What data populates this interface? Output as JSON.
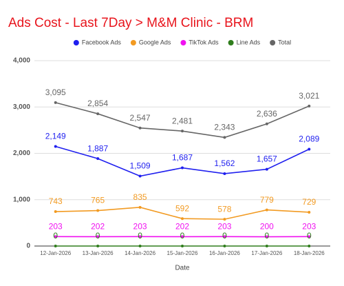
{
  "chart_data": {
    "type": "line",
    "title": "Ads Cost - Last 7Day > M&M Clinic - BRM",
    "x_label": "Date",
    "categories": [
      "12-Jan-2026",
      "13-Jan-2026",
      "14-Jan-2026",
      "15-Jan-2026",
      "16-Jan-2026",
      "17-Jan-2026",
      "18-Jan-2026"
    ],
    "series": [
      {
        "name": "Facebook Ads",
        "color": "#1f1fef",
        "values": [
          2149,
          1887,
          1509,
          1687,
          1562,
          1657,
          2089
        ],
        "value_labels": [
          "2,149",
          "1,887",
          "1,509",
          "1,687",
          "1,562",
          "1,657",
          "2,089"
        ]
      },
      {
        "name": "Google Ads",
        "color": "#f29a21",
        "values": [
          743,
          765,
          835,
          592,
          578,
          779,
          729
        ]
      },
      {
        "name": "TikTok Ads",
        "color": "#f010f0",
        "values": [
          203,
          202,
          203,
          202,
          203,
          200,
          203
        ]
      },
      {
        "name": "Line Ads",
        "color": "#2f7d1c",
        "values": [
          0,
          0,
          0,
          0,
          0,
          0,
          0
        ]
      },
      {
        "name": "Total",
        "color": "#666666",
        "values": [
          3095,
          2854,
          2547,
          2481,
          2343,
          2636,
          3021
        ],
        "value_labels": [
          "3,095",
          "2,854",
          "2,547",
          "2,481",
          "2,343",
          "2,636",
          "3,021"
        ]
      }
    ],
    "ylim": [
      0,
      4000
    ],
    "yticks": [
      0,
      {
        "value": 1000,
        "label": "1,000"
      },
      {
        "value": 2000,
        "label": "2,000"
      },
      {
        "value": 3000,
        "label": "3,000"
      },
      {
        "value": 4000,
        "label": "4,000"
      }
    ],
    "grid": true,
    "legend": "top"
  }
}
